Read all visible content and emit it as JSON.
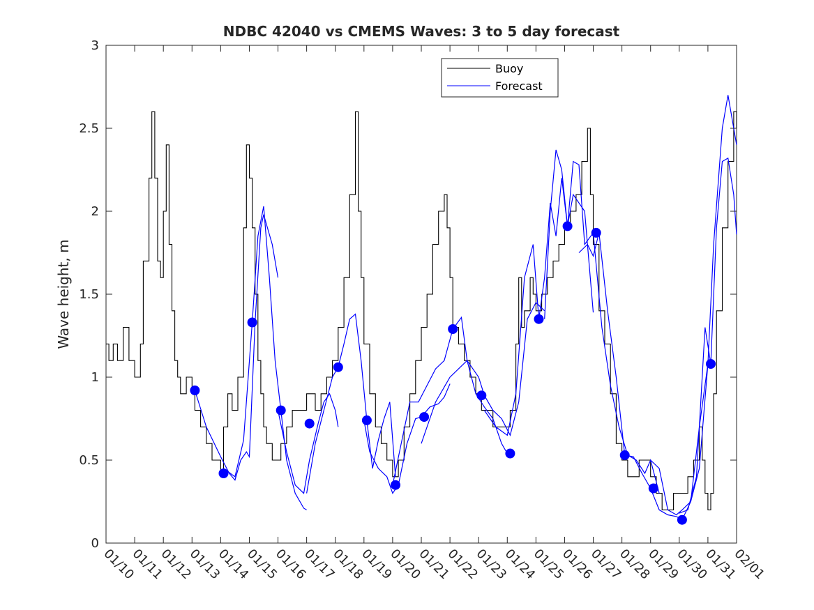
{
  "chart_data": {
    "type": "line",
    "title": "NDBC 42040 vs CMEMS Waves: 3 to 5 day forecast",
    "xlabel": "",
    "ylabel": "Wave height, m",
    "xlim": [
      0,
      22
    ],
    "ylim": [
      0,
      3
    ],
    "grid": false,
    "legend_position": "top-center",
    "x_tick_values": [
      0,
      1,
      2,
      3,
      4,
      5,
      6,
      7,
      8,
      9,
      10,
      11,
      12,
      13,
      14,
      15,
      16,
      17,
      18,
      19,
      20,
      21,
      22
    ],
    "x_tick_labels": [
      "01/10",
      "01/11",
      "01/12",
      "01/13",
      "01/14",
      "01/15",
      "01/16",
      "01/17",
      "01/18",
      "01/19",
      "01/20",
      "01/21",
      "01/22",
      "01/23",
      "01/24",
      "01/25",
      "01/26",
      "01/27",
      "01/28",
      "01/29",
      "01/30",
      "01/31",
      "02/01"
    ],
    "y_tick_values": [
      0,
      0.5,
      1,
      1.5,
      2,
      2.5,
      3
    ],
    "y_tick_labels": [
      "0",
      "0.5",
      "1",
      "1.5",
      "2",
      "2.5",
      "3"
    ],
    "series": [
      {
        "name": "Buoy",
        "color": "#000000",
        "x": [
          0,
          0.1,
          0.25,
          0.4,
          0.6,
          0.8,
          1.0,
          1.2,
          1.3,
          1.5,
          1.6,
          1.7,
          1.8,
          1.9,
          2.0,
          2.1,
          2.2,
          2.3,
          2.4,
          2.5,
          2.6,
          2.8,
          3.0,
          3.1,
          3.3,
          3.5,
          3.7,
          3.9,
          4.0,
          4.1,
          4.25,
          4.4,
          4.6,
          4.8,
          4.9,
          5.0,
          5.1,
          5.2,
          5.3,
          5.4,
          5.5,
          5.6,
          5.8,
          5.9,
          6.1,
          6.3,
          6.5,
          6.8,
          7.0,
          7.3,
          7.5,
          7.7,
          7.9,
          8.1,
          8.3,
          8.5,
          8.7,
          8.8,
          8.9,
          9.0,
          9.2,
          9.4,
          9.6,
          9.8,
          10.0,
          10.1,
          10.2,
          10.4,
          10.6,
          10.8,
          11.0,
          11.2,
          11.4,
          11.6,
          11.8,
          11.9,
          12.0,
          12.1,
          12.3,
          12.5,
          12.7,
          12.9,
          13.1,
          13.3,
          13.5,
          13.7,
          13.9,
          14.1,
          14.3,
          14.4,
          14.5,
          14.6,
          14.8,
          14.9,
          15.0,
          15.2,
          15.4,
          15.6,
          15.8,
          16.0,
          16.2,
          16.4,
          16.6,
          16.8,
          16.9,
          17.0,
          17.2,
          17.4,
          17.6,
          17.8,
          18.0,
          18.2,
          18.4,
          18.6,
          18.8,
          19.0,
          19.2,
          19.4,
          19.6,
          19.8,
          19.9,
          20.1,
          20.3,
          20.5,
          20.7,
          20.8,
          20.9,
          21.0,
          21.1,
          21.2,
          21.3,
          21.5,
          21.7,
          21.9,
          22.0
        ],
        "values": [
          1.2,
          1.1,
          1.2,
          1.1,
          1.3,
          1.1,
          1.0,
          1.2,
          1.7,
          2.2,
          2.6,
          2.2,
          1.7,
          1.6,
          2.0,
          2.4,
          1.8,
          1.4,
          1.1,
          1.0,
          0.9,
          1.0,
          0.9,
          0.8,
          0.7,
          0.6,
          0.5,
          0.5,
          0.4,
          0.7,
          0.9,
          0.8,
          1.0,
          1.9,
          2.4,
          2.2,
          1.9,
          1.5,
          1.1,
          0.9,
          0.7,
          0.6,
          0.5,
          0.5,
          0.6,
          0.7,
          0.8,
          0.8,
          0.9,
          0.8,
          0.9,
          1.0,
          1.1,
          1.3,
          1.6,
          2.1,
          2.6,
          2.0,
          1.6,
          1.2,
          0.9,
          0.7,
          0.6,
          0.5,
          0.4,
          0.4,
          0.5,
          0.7,
          0.9,
          1.1,
          1.3,
          1.5,
          1.8,
          2.0,
          2.1,
          1.9,
          1.6,
          1.3,
          1.2,
          1.1,
          1.0,
          0.9,
          0.8,
          0.8,
          0.7,
          0.7,
          0.7,
          0.8,
          1.2,
          1.6,
          1.3,
          1.4,
          1.6,
          1.5,
          1.4,
          1.5,
          1.6,
          1.7,
          1.8,
          1.9,
          2.0,
          2.1,
          2.3,
          2.5,
          2.1,
          1.8,
          1.4,
          1.2,
          0.9,
          0.6,
          0.5,
          0.4,
          0.4,
          0.5,
          0.5,
          0.4,
          0.3,
          0.2,
          0.2,
          0.3,
          0.3,
          0.3,
          0.4,
          0.5,
          0.7,
          0.5,
          0.3,
          0.2,
          0.3,
          0.9,
          1.4,
          1.9,
          2.3,
          2.6,
          2.5
        ]
      },
      {
        "name": "Forecast",
        "color": "#0000ff",
        "segments": [
          {
            "x": [
              3.1,
              3.5,
              4.0,
              4.3,
              4.5,
              4.7,
              4.9,
              5.0,
              5.2,
              5.4,
              5.5,
              5.8,
              6.0
            ],
            "values": [
              0.92,
              0.7,
              0.52,
              0.42,
              0.38,
              0.5,
              0.55,
              0.52,
              1.33,
              1.9,
              1.98,
              1.8,
              1.6
            ]
          },
          {
            "x": [
              4.1,
              4.5,
              4.8,
              5.1,
              5.3,
              5.5,
              5.7,
              5.9,
              6.1,
              6.3,
              6.6,
              6.9,
              7.0
            ],
            "values": [
              0.45,
              0.4,
              0.62,
              1.33,
              1.85,
              2.03,
              1.6,
              1.1,
              0.8,
              0.5,
              0.3,
              0.21,
              0.2
            ]
          },
          {
            "x": [
              6.0,
              6.3,
              6.6,
              6.9,
              7.1,
              7.4,
              7.6,
              7.8,
              8.0,
              8.1
            ],
            "values": [
              0.8,
              0.55,
              0.35,
              0.3,
              0.5,
              0.72,
              0.85,
              0.9,
              0.8,
              0.7
            ]
          },
          {
            "x": [
              7.0,
              7.3,
              7.6,
              7.9,
              8.1,
              8.3,
              8.5,
              8.7,
              8.9,
              9.1,
              9.3,
              9.5,
              9.7,
              9.9,
              10.1
            ],
            "values": [
              0.3,
              0.6,
              0.8,
              1.0,
              1.06,
              1.2,
              1.35,
              1.38,
              1.1,
              0.74,
              0.45,
              0.62,
              0.75,
              0.85,
              0.4
            ]
          },
          {
            "x": [
              9.0,
              9.2,
              9.5,
              9.8,
              10.0,
              10.2,
              10.5,
              10.8,
              11.0,
              11.3,
              11.6,
              11.8,
              12.0
            ],
            "values": [
              0.74,
              0.55,
              0.45,
              0.4,
              0.3,
              0.35,
              0.6,
              0.75,
              0.76,
              0.82,
              0.84,
              0.88,
              0.96
            ]
          },
          {
            "x": [
              10.0,
              10.3,
              10.6,
              10.9,
              11.2,
              11.5,
              11.8,
              12.1,
              12.4,
              12.6,
              12.9,
              13.2,
              13.5,
              13.8,
              14.0
            ],
            "values": [
              0.35,
              0.6,
              0.85,
              0.85,
              0.95,
              1.05,
              1.1,
              1.29,
              1.36,
              1.1,
              0.9,
              0.82,
              0.75,
              0.6,
              0.54
            ]
          },
          {
            "x": [
              11.0,
              11.5,
              12.0,
              12.3,
              12.6,
              13.0,
              13.2,
              13.5,
              13.8,
              14.1,
              14.4,
              14.7,
              15.0,
              15.3
            ],
            "values": [
              0.6,
              0.85,
              1.0,
              1.05,
              1.1,
              1.0,
              0.89,
              0.8,
              0.75,
              0.65,
              0.85,
              1.35,
              1.45,
              1.4
            ]
          },
          {
            "x": [
              13.2,
              13.6,
              14.0,
              14.3,
              14.6,
              14.9,
              15.1,
              15.3,
              15.5,
              15.7,
              15.9,
              16.1,
              16.3,
              16.5,
              16.7,
              17.0
            ],
            "values": [
              0.8,
              0.7,
              0.65,
              0.9,
              1.6,
              1.8,
              1.35,
              1.6,
              2.05,
              1.85,
              2.2,
              1.91,
              2.1,
              2.05,
              2.0,
              1.39
            ]
          },
          {
            "x": [
              15.3,
              15.5,
              15.7,
              15.9,
              16.1,
              16.3,
              16.5,
              16.7,
              17.0,
              17.3,
              17.6,
              17.9,
              18.2,
              18.5,
              18.8,
              19.0,
              19.3
            ],
            "values": [
              1.35,
              2.0,
              2.37,
              2.25,
              1.91,
              2.3,
              2.28,
              1.8,
              1.87,
              1.3,
              0.95,
              0.7,
              0.53,
              0.5,
              0.42,
              0.5,
              0.3
            ]
          },
          {
            "x": [
              16.5,
              16.8,
              17.0,
              17.2,
              17.5,
              17.8,
              18.1,
              18.4,
              18.7,
              19.0,
              19.3,
              19.6,
              19.9,
              20.1,
              20.4,
              20.7,
              21.0
            ],
            "values": [
              1.75,
              1.8,
              1.73,
              1.87,
              1.4,
              1.0,
              0.53,
              0.52,
              0.42,
              0.33,
              0.2,
              0.17,
              0.16,
              0.14,
              0.25,
              0.7,
              1.08
            ]
          },
          {
            "x": [
              19.0,
              19.3,
              19.6,
              19.9,
              20.1,
              20.4,
              20.7,
              21.0,
              21.2,
              21.5,
              21.7,
              22.0
            ],
            "values": [
              0.5,
              0.45,
              0.2,
              0.17,
              0.2,
              0.25,
              0.45,
              1.08,
              1.8,
              2.5,
              2.7,
              2.4
            ]
          },
          {
            "x": [
              20.0,
              20.3,
              20.6,
              20.9,
              21.1,
              21.3,
              21.5,
              21.7,
              21.9,
              22.0
            ],
            "values": [
              0.18,
              0.2,
              0.4,
              1.3,
              1.08,
              1.9,
              2.3,
              2.32,
              2.1,
              1.86
            ]
          }
        ],
        "markers_x": [
          3.1,
          4.1,
          5.1,
          6.1,
          7.1,
          8.1,
          9.1,
          10.1,
          11.1,
          12.1,
          13.1,
          14.1,
          15.1,
          16.1,
          17.1,
          18.1,
          19.1,
          20.1,
          21.1
        ],
        "markers_values": [
          0.92,
          0.42,
          1.33,
          0.8,
          0.72,
          1.06,
          0.74,
          0.35,
          0.76,
          1.29,
          0.89,
          0.54,
          1.35,
          1.91,
          1.87,
          0.53,
          0.33,
          0.14,
          1.08
        ]
      }
    ]
  }
}
